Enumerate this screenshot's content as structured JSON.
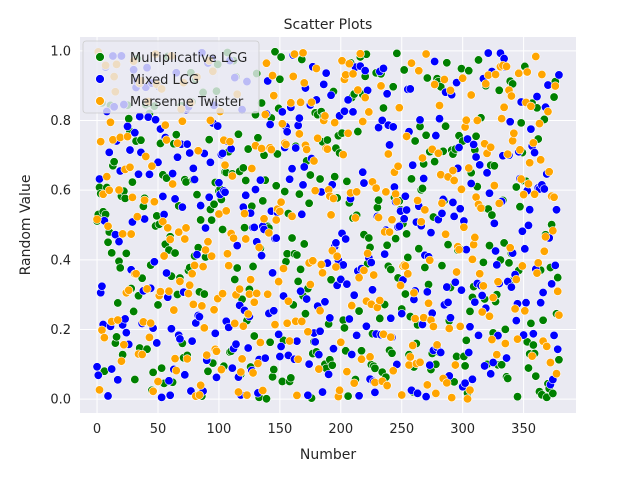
{
  "chart_data": {
    "type": "scatter",
    "title": "Scatter Plots",
    "xlabel": "Number",
    "ylabel": "Random Value",
    "xlim": [
      -14,
      393
    ],
    "ylim": [
      -0.04,
      1.04
    ],
    "xticks": [
      0,
      50,
      100,
      150,
      200,
      250,
      300,
      350
    ],
    "yticks": [
      0.0,
      0.2,
      0.4,
      0.6,
      0.8,
      1.0
    ],
    "grid": true,
    "legend_position": "top-left",
    "background_color": "#eaeaf2",
    "series": [
      {
        "name": "Multiplicative LCG",
        "color": "#008000",
        "seed": 11,
        "count": 380,
        "x_start": 0,
        "x_end": 379
      },
      {
        "name": "Mixed LCG",
        "color": "#0000ff",
        "seed": 23,
        "count": 380,
        "x_start": 0,
        "x_end": 379
      },
      {
        "name": "Mersenne Twister",
        "color": "#ffa500",
        "seed": 37,
        "count": 380,
        "x_start": 0,
        "x_end": 379
      }
    ]
  }
}
